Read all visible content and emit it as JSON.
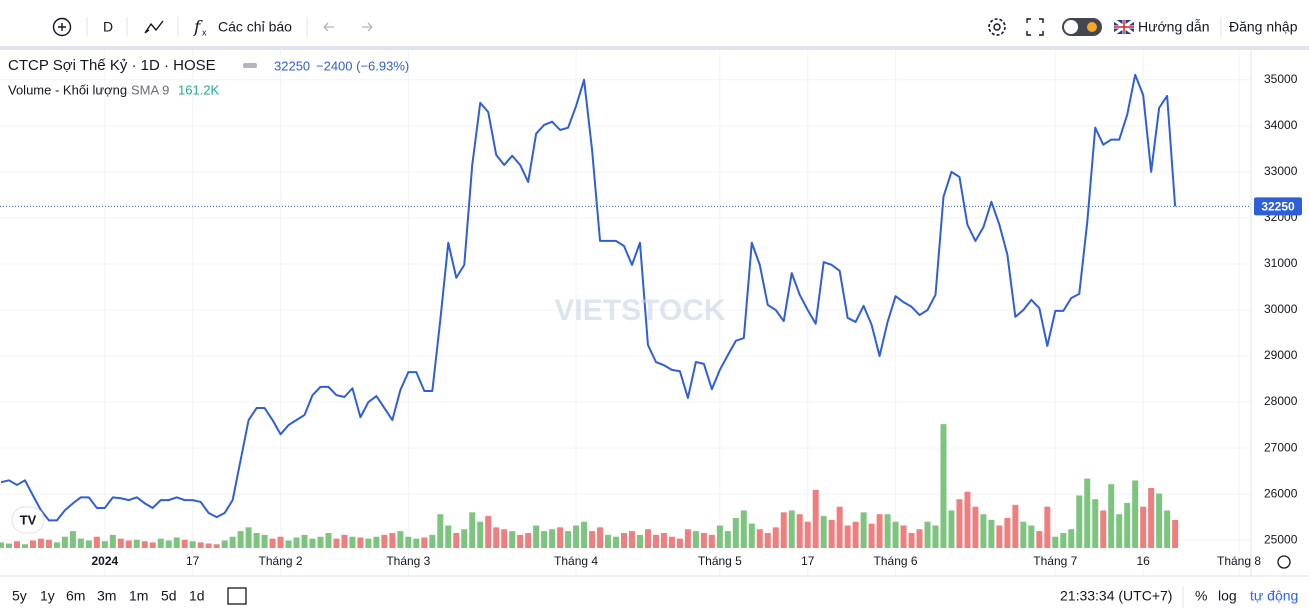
{
  "toolbar": {
    "interval": "D",
    "indicators": "Các chỉ báo",
    "guide": "Hướng dẫn",
    "login": "Đăng nhập"
  },
  "chart_data": {
    "type": "line",
    "change": "−2400 (−6.93%)",
    "watermark": "VIETSTOCK",
    "categories": [
      null,
      null,
      null,
      null,
      null,
      null,
      null,
      null,
      null,
      null,
      null,
      null,
      null,
      "2024",
      null,
      null,
      null,
      null,
      null,
      null,
      null,
      null,
      null,
      null,
      "17",
      null,
      null,
      null,
      null,
      null,
      null,
      null,
      null,
      null,
      null,
      "Tháng 2",
      null,
      null,
      null,
      null,
      null,
      null,
      null,
      null,
      null,
      null,
      null,
      null,
      null,
      null,
      null,
      "Tháng 3",
      null,
      null,
      null,
      null,
      null,
      null,
      null,
      null,
      null,
      null,
      null,
      null,
      null,
      null,
      null,
      null,
      null,
      null,
      null,
      null,
      "Tháng 4",
      null,
      null,
      null,
      null,
      null,
      null,
      null,
      null,
      null,
      null,
      null,
      null,
      null,
      null,
      null,
      null,
      null,
      "Tháng 5",
      null,
      null,
      null,
      null,
      null,
      null,
      null,
      null,
      null,
      null,
      "17",
      null,
      null,
      null,
      null,
      null,
      null,
      null,
      null,
      null,
      null,
      "Tháng 6",
      null,
      null,
      null,
      null,
      null,
      null,
      null,
      null,
      null,
      null,
      null,
      null,
      null,
      null,
      null,
      null,
      null,
      null,
      null,
      "Tháng 7",
      null,
      null,
      null,
      null,
      null,
      null,
      null,
      null,
      null,
      null,
      "16",
      null,
      null,
      null,
      null,
      null,
      null,
      null,
      null,
      null,
      null,
      null,
      "Tháng 8",
      null
    ],
    "series": [
      {
        "name": "CTCP Sợi Thế Kỷ · 1D · HOSE",
        "color": "#2f5fd8",
        "values": [
          26260,
          26300,
          26200,
          26300,
          25970,
          25650,
          25430,
          25430,
          25650,
          25800,
          25930,
          25930,
          25700,
          25700,
          25930,
          25910,
          25870,
          25930,
          25800,
          25700,
          25870,
          25870,
          25930,
          25870,
          25870,
          25830,
          25590,
          25500,
          25590,
          25870,
          26740,
          27610,
          27870,
          27870,
          27610,
          27300,
          27500,
          27610,
          27720,
          28150,
          28330,
          28330,
          28150,
          28110,
          28300,
          27670,
          28000,
          28130,
          27870,
          27610,
          28260,
          28650,
          28650,
          28240,
          28240,
          29780,
          31460,
          30700,
          30980,
          33150,
          34500,
          34300,
          33370,
          33150,
          33350,
          33150,
          32780,
          33830,
          34020,
          34090,
          33910,
          33960,
          34430,
          35000,
          33480,
          31500,
          31500,
          31500,
          31390,
          30980,
          31460,
          29240,
          28870,
          28800,
          28700,
          28670,
          28090,
          28870,
          28830,
          28280,
          28700,
          29020,
          29330,
          29390,
          31460,
          30980,
          30110,
          30000,
          29760,
          30800,
          30330,
          30000,
          29700,
          31040,
          30980,
          30850,
          29830,
          29740,
          30090,
          29680,
          29000,
          29740,
          30300,
          30170,
          30070,
          29890,
          30000,
          30330,
          32460,
          33000,
          32890,
          31850,
          31500,
          31800,
          32350,
          31850,
          31200,
          29850,
          30000,
          30220,
          30040,
          29220,
          29980,
          29980,
          30260,
          30350,
          31910,
          33960,
          33590,
          33700,
          33700,
          34240,
          35110,
          34670,
          33000,
          34390,
          34650,
          32250,
          null,
          null,
          null,
          null,
          null,
          null,
          null,
          null,
          null
        ]
      },
      {
        "name": "Volume - Khối lượng",
        "type": "bar",
        "axis": "y2",
        "up_color": "#7dc47f",
        "down_color": "#ef7f7f",
        "sma": "SMA 9",
        "sma_value": "161.2K",
        "values": [
          15,
          12,
          18,
          10,
          20,
          25,
          22,
          15,
          30,
          45,
          25,
          20,
          30,
          18,
          35,
          25,
          20,
          22,
          18,
          15,
          25,
          20,
          28,
          22,
          18,
          15,
          12,
          10,
          20,
          30,
          45,
          55,
          40,
          35,
          25,
          30,
          20,
          28,
          35,
          25,
          30,
          40,
          25,
          35,
          30,
          28,
          25,
          30,
          35,
          40,
          45,
          30,
          25,
          28,
          35,
          90,
          60,
          40,
          50,
          95,
          70,
          85,
          55,
          50,
          45,
          35,
          40,
          60,
          45,
          50,
          55,
          45,
          60,
          70,
          45,
          55,
          35,
          30,
          40,
          45,
          35,
          50,
          35,
          40,
          30,
          25,
          50,
          45,
          40,
          35,
          60,
          45,
          80,
          100,
          65,
          50,
          40,
          55,
          95,
          100,
          90,
          70,
          155,
          85,
          75,
          110,
          60,
          70,
          95,
          65,
          90,
          90,
          70,
          60,
          40,
          50,
          70,
          60,
          330,
          100,
          130,
          150,
          110,
          90,
          75,
          60,
          80,
          115,
          70,
          60,
          45,
          110,
          30,
          40,
          50,
          140,
          185,
          130,
          100,
          170,
          90,
          120,
          180,
          110,
          160,
          145,
          100,
          75,
          null,
          null,
          null,
          null,
          null,
          null,
          null,
          null,
          null
        ]
      }
    ],
    "ylim": [
      24830,
      35430
    ],
    "yticks": [
      25000,
      26000,
      27000,
      28000,
      29000,
      30000,
      31000,
      32000,
      33000,
      34000,
      35000
    ],
    "y2lim": [
      0,
      1300
    ],
    "grid": true
  },
  "bottom_bar": {
    "ranges": [
      "5y",
      "1y",
      "6m",
      "3m",
      "1m",
      "5d",
      "1d"
    ],
    "time": "21:33:34 (UTC+7)",
    "percent": "%",
    "log": "log",
    "auto": "tự động"
  }
}
